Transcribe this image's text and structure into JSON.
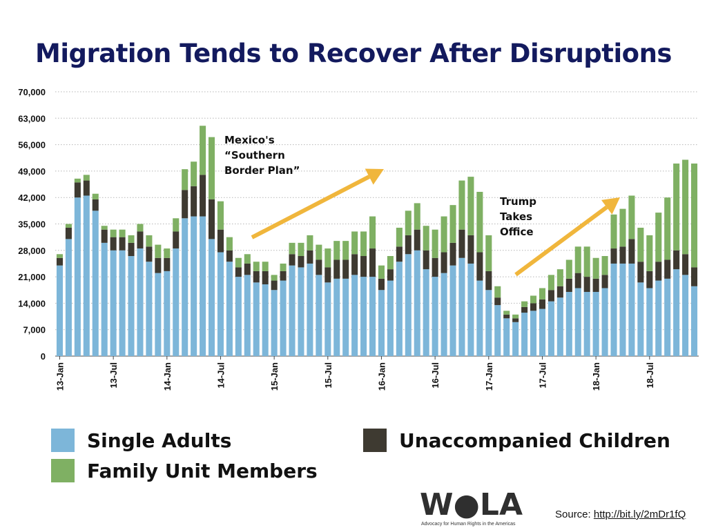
{
  "chart_data": {
    "type": "bar",
    "stacked": true,
    "title": "Migration Tends to Recover After Disruptions",
    "ylim": [
      0,
      70000
    ],
    "yticks": [
      "70,000",
      "63,000",
      "56,000",
      "49,000",
      "42,000",
      "35,000",
      "28,000",
      "21,000",
      "14,000",
      "7,000",
      "0"
    ],
    "ytick_values": [
      70000,
      63000,
      56000,
      49000,
      42000,
      35000,
      28000,
      21000,
      14000,
      7000,
      0
    ],
    "grid": true,
    "xtick_labels": [
      {
        "label": "13-Jan",
        "index": 0
      },
      {
        "label": "13-Jul",
        "index": 6
      },
      {
        "label": "14-Jan",
        "index": 12
      },
      {
        "label": "14-Jul",
        "index": 18
      },
      {
        "label": "15-Jan",
        "index": 24
      },
      {
        "label": "15-Jul",
        "index": 30
      },
      {
        "label": "16-Jan",
        "index": 36
      },
      {
        "label": "16-Jul",
        "index": 42
      },
      {
        "label": "17-Jan",
        "index": 48
      },
      {
        "label": "17-Jul",
        "index": 54
      },
      {
        "label": "18-Jan",
        "index": 60
      },
      {
        "label": "18-Jul",
        "index": 66
      }
    ],
    "series": [
      {
        "name": "Single Adults",
        "color": "#7db6d9",
        "values": [
          24000,
          31000,
          42000,
          42500,
          38500,
          30000,
          28000,
          28000,
          26500,
          28500,
          25000,
          22000,
          22500,
          28500,
          36500,
          37000,
          37000,
          31000,
          27500,
          25000,
          21000,
          21500,
          19500,
          19000,
          17500,
          20000,
          24000,
          23500,
          24500,
          21500,
          19500,
          20500,
          20500,
          21500,
          21000,
          21000,
          17500,
          20000,
          25000,
          27000,
          28000,
          23000,
          21000,
          22000,
          24000,
          26000,
          24500,
          20000,
          17500,
          13500,
          10000,
          9000,
          11500,
          12000,
          12500,
          14500,
          15500,
          17000,
          18000,
          17000,
          17000,
          18000,
          24500,
          24500,
          24500,
          19500,
          18000,
          20000,
          20500,
          23000,
          21500,
          18500
        ]
      },
      {
        "name": "Unaccompanied Children",
        "color": "#3e3a31",
        "values": [
          2000,
          3000,
          4000,
          4000,
          3000,
          3500,
          3500,
          3500,
          3500,
          4500,
          4000,
          4000,
          3500,
          4500,
          7500,
          8000,
          11000,
          10500,
          6000,
          3000,
          2500,
          3000,
          3000,
          3500,
          2500,
          2500,
          3000,
          3000,
          3500,
          4000,
          4000,
          5000,
          5000,
          5500,
          5500,
          7500,
          3000,
          3000,
          4000,
          5000,
          5500,
          5000,
          5000,
          5500,
          6000,
          7500,
          7500,
          7500,
          5000,
          2000,
          1000,
          1000,
          1500,
          2000,
          2500,
          3000,
          3000,
          3500,
          4000,
          4000,
          3500,
          3500,
          4000,
          4500,
          6500,
          5500,
          4500,
          5000,
          5000,
          5000,
          5500,
          5000
        ]
      },
      {
        "name": "Family Unit Members",
        "color": "#7fb063",
        "values": [
          1000,
          1000,
          1000,
          1500,
          1500,
          1000,
          2000,
          2000,
          2000,
          2000,
          3000,
          3500,
          2500,
          3500,
          5500,
          6500,
          13000,
          16500,
          7500,
          3500,
          2500,
          2500,
          2500,
          2500,
          1500,
          2000,
          3000,
          3500,
          4000,
          4000,
          5000,
          5000,
          5000,
          6000,
          6500,
          8500,
          3500,
          3500,
          5000,
          6500,
          7000,
          6500,
          7500,
          9500,
          10000,
          13000,
          15500,
          16000,
          9500,
          3000,
          1000,
          1000,
          1500,
          2000,
          3000,
          4000,
          4500,
          5000,
          7000,
          8000,
          5500,
          5000,
          9000,
          10000,
          11500,
          9000,
          9500,
          13000,
          16500,
          23000,
          25000,
          27500
        ]
      }
    ],
    "annotations": [
      {
        "lines": [
          "Mexico's",
          "“Southern",
          "Border Plan”"
        ]
      },
      {
        "lines": [
          "Trump",
          "Takes",
          "Office"
        ]
      }
    ]
  },
  "legend": [
    {
      "key": "single",
      "label": "Single Adults",
      "color": "#7db6d9"
    },
    {
      "key": "family",
      "label": "Family Unit Members",
      "color": "#7fb063"
    },
    {
      "key": "uac",
      "label": "Unaccompanied Children",
      "color": "#3e3a31"
    }
  ],
  "logo": {
    "text": "W●LA",
    "subtitle": "Advocacy for Human Rights in the Americas"
  },
  "source": {
    "prefix": "Source: ",
    "link": "http://bit.ly/2mDr1fQ"
  },
  "arrow_color": "#f0b63c"
}
